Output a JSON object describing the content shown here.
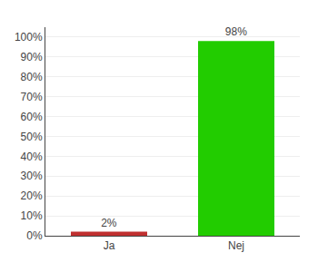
{
  "chart_data": {
    "type": "bar",
    "categories": [
      "Ja",
      "Nej"
    ],
    "values": [
      2,
      98
    ],
    "value_labels": [
      "2%",
      "98%"
    ],
    "data_labels": true,
    "colors": [
      "#c03030",
      "#22cc00"
    ],
    "ylim": [
      0,
      105
    ],
    "yticks": [
      {
        "value": 0,
        "label": "0%"
      },
      {
        "value": 10,
        "label": "10%"
      },
      {
        "value": 20,
        "label": "20%"
      },
      {
        "value": 30,
        "label": "30%"
      },
      {
        "value": 40,
        "label": "40%"
      },
      {
        "value": 50,
        "label": "50%"
      },
      {
        "value": 60,
        "label": "60%"
      },
      {
        "value": 70,
        "label": "70%"
      },
      {
        "value": 80,
        "label": "80%"
      },
      {
        "value": 90,
        "label": "90%"
      },
      {
        "value": 100,
        "label": "100%"
      }
    ],
    "grid": true
  }
}
